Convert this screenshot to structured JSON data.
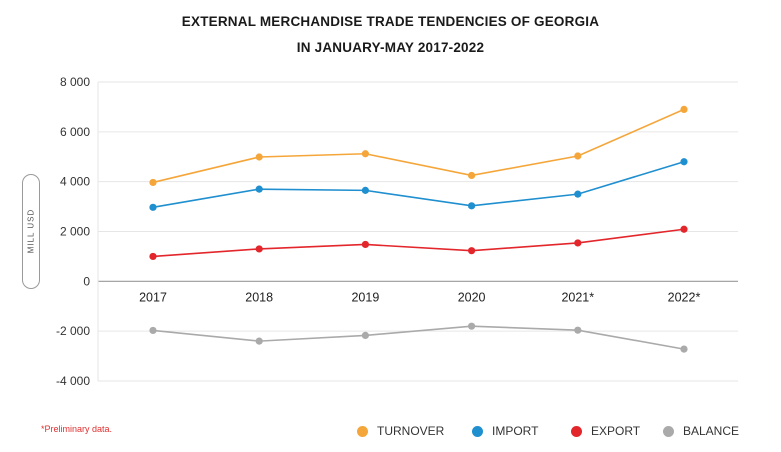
{
  "chart_data": {
    "type": "line",
    "title": "EXTERNAL MERCHANDISE TRADE TENDENCIES OF GEORGIA",
    "subtitle": "IN JANUARY-MAY 2017-2022",
    "ylabel": "MILL USD",
    "xlabel": "",
    "categories": [
      "2017",
      "2018",
      "2019",
      "2020",
      "2021*",
      "2022*"
    ],
    "ylim": [
      -4000,
      8000
    ],
    "yticks": [
      8000,
      6000,
      4000,
      2000,
      0,
      -2000,
      -4000
    ],
    "ytick_labels": [
      "8 000",
      "6 000",
      "4 000",
      "2 000",
      "0",
      "-2 000",
      "-4 000"
    ],
    "grid": true,
    "legend_position": "bottom-right",
    "series": [
      {
        "name": "TURNOVER",
        "color": "#f5a63a",
        "values": [
          3970,
          4990,
          5120,
          4250,
          5030,
          6900
        ]
      },
      {
        "name": "IMPORT",
        "color": "#1f8fcf",
        "values": [
          2970,
          3700,
          3650,
          3030,
          3500,
          4800
        ]
      },
      {
        "name": "EXPORT",
        "color": "#e3262b",
        "values": [
          1000,
          1300,
          1480,
          1230,
          1540,
          2090
        ]
      },
      {
        "name": "BALANCE",
        "color": "#aaaaaa",
        "values": [
          -1970,
          -2400,
          -2170,
          -1800,
          -1960,
          -2720
        ]
      }
    ]
  },
  "footnote": "*Preliminary data."
}
